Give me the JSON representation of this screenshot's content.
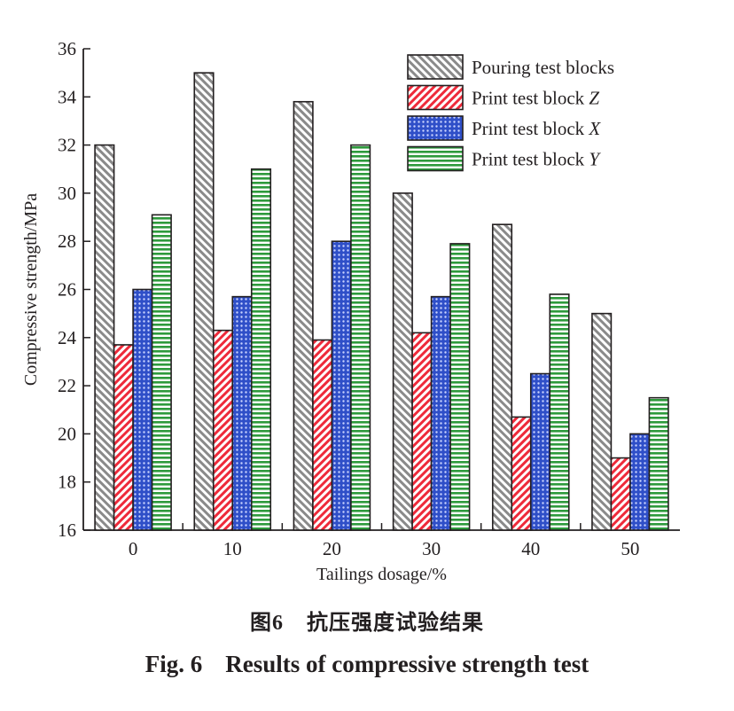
{
  "chart_data": {
    "type": "bar",
    "title": "",
    "xlabel": "Tailings dosage/%",
    "ylabel": "Compressive strength/MPa",
    "ylim": [
      16,
      36
    ],
    "yticks": [
      16,
      18,
      20,
      22,
      24,
      26,
      28,
      30,
      32,
      34,
      36
    ],
    "categories": [
      "0",
      "10",
      "20",
      "30",
      "40",
      "50"
    ],
    "grid": false,
    "legend_position": "top-right",
    "series": [
      {
        "name": "Pouring test blocks",
        "legend_main": "Pouring test blocks",
        "legend_italic": "",
        "color": "#8a8a8a",
        "pattern": "diagonal-hatch",
        "values": [
          32.0,
          35.0,
          33.8,
          30.0,
          28.7,
          25.0
        ]
      },
      {
        "name": "Print test block Z",
        "legend_main": "Print test block ",
        "legend_italic": "Z",
        "color": "#ee2a3a",
        "pattern": "diagonal-hatch",
        "values": [
          23.7,
          24.3,
          23.9,
          24.2,
          20.7,
          19.0
        ]
      },
      {
        "name": "Print test block X",
        "legend_main": "Print test block ",
        "legend_italic": "X",
        "color": "#2f4fc8",
        "pattern": "dots",
        "values": [
          26.0,
          25.7,
          28.0,
          25.7,
          22.5,
          20.0
        ]
      },
      {
        "name": "Print test block Y",
        "legend_main": "Print test block ",
        "legend_italic": "Y",
        "color": "#2e9a3c",
        "pattern": "horizontal-stripes",
        "values": [
          29.1,
          31.0,
          32.0,
          27.9,
          25.8,
          21.5
        ]
      }
    ]
  },
  "caption_cn": {
    "label": "图",
    "number": "6",
    "text": "抗压强度试验结果"
  },
  "caption_en": {
    "label": "Fig. 6",
    "text": "Results of compressive strength test"
  }
}
